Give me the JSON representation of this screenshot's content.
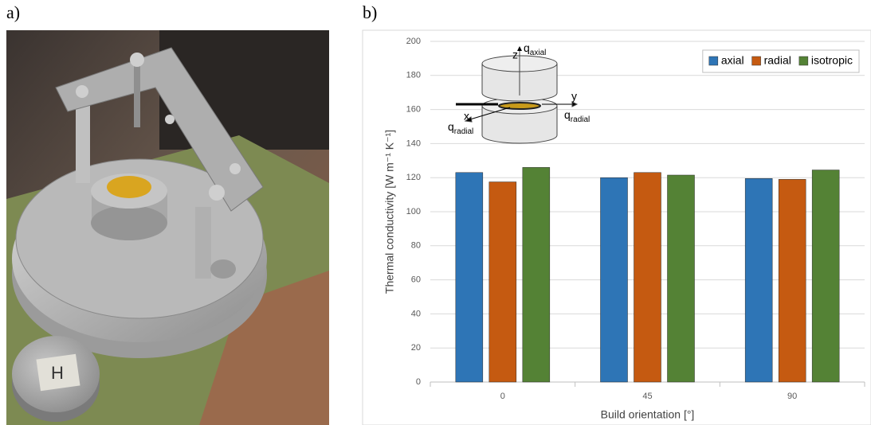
{
  "panels": {
    "a_label": "a)",
    "b_label": "b)"
  },
  "photo": {
    "sample_label": "H"
  },
  "chart_data": {
    "type": "bar",
    "y_label": "Thermal conductivity [W m⁻¹ K⁻¹]",
    "x_label": "Build orientation [°]",
    "categories": [
      "0",
      "45",
      "90"
    ],
    "series": [
      {
        "name": "axial",
        "color": "#2e75b6",
        "values": [
          123,
          120,
          119.5
        ]
      },
      {
        "name": "radial",
        "color": "#c55a11",
        "values": [
          117.5,
          123,
          119
        ]
      },
      {
        "name": "isotropic",
        "color": "#548235",
        "values": [
          126,
          121.5,
          124.5
        ]
      }
    ],
    "ylim": [
      0,
      200
    ],
    "yticks": [
      0,
      20,
      40,
      60,
      80,
      100,
      120,
      140,
      160,
      180,
      200
    ],
    "grid": true,
    "legend": "top-right",
    "annotations": [
      {
        "text": "z"
      },
      {
        "text": "q",
        "subscript": "axial"
      },
      {
        "text": "y"
      },
      {
        "text": "q",
        "subscript": "radial"
      },
      {
        "text": "x"
      },
      {
        "text": "q",
        "subscript": "radial"
      }
    ]
  }
}
